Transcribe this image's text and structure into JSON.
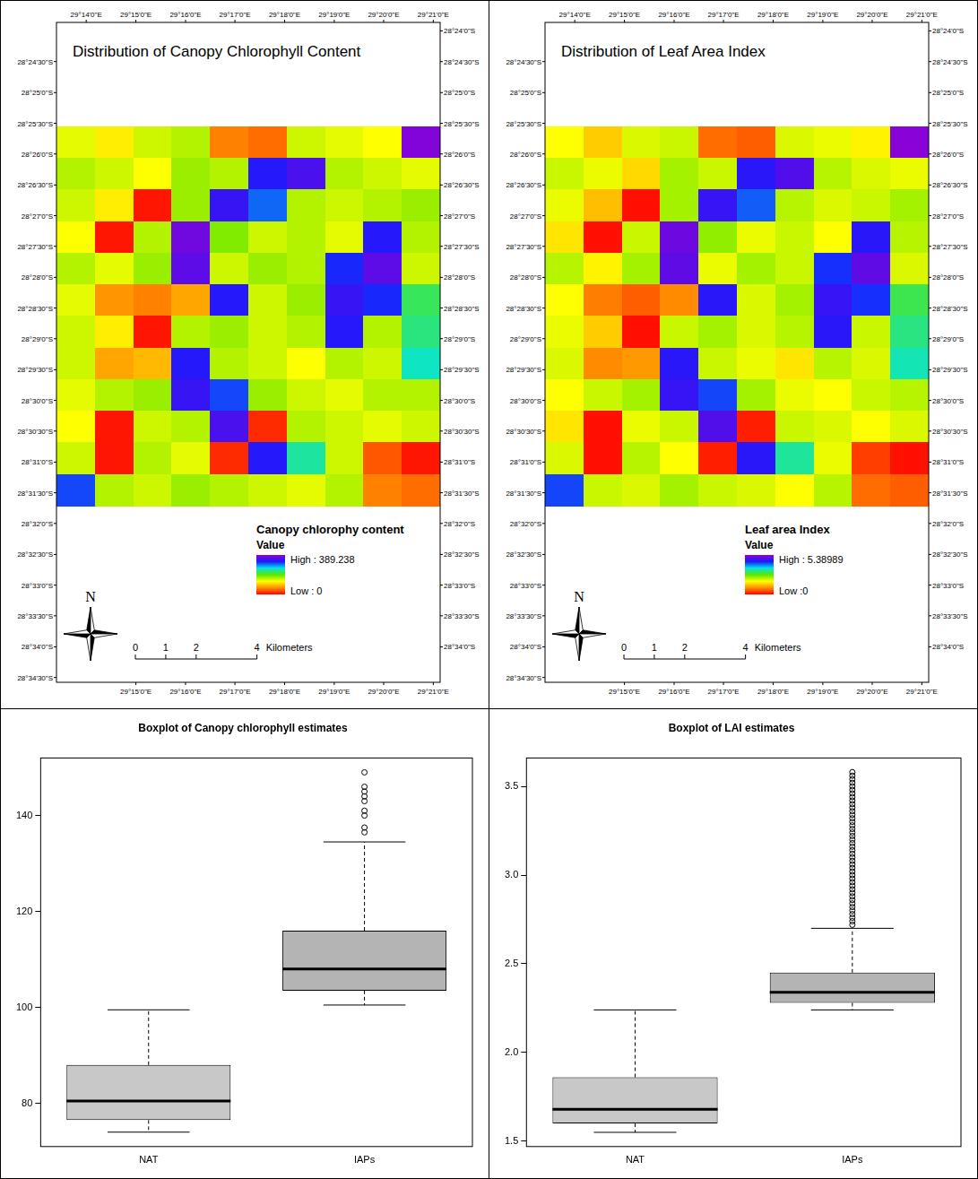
{
  "chart_data": [
    {
      "type": "map",
      "title": "Distribution of Canopy Chlorophyll Content",
      "legend_title": "Canopy chlorophy content",
      "legend_subtitle": "Value",
      "colorbar": {
        "range": [
          0,
          389.238
        ],
        "labels": [
          "Low : 0",
          "High : 389.238"
        ],
        "colors": [
          "#ff0000",
          "#ff8c00",
          "#ffff00",
          "#5ce600",
          "#00e5e5",
          "#1a1aff",
          "#9400d3"
        ]
      },
      "north": "N",
      "scale_bar": {
        "ticks": [
          0,
          1,
          2,
          4
        ],
        "unit": "Kilometers"
      },
      "xlim": [
        29.2233,
        29.3523
      ],
      "ylim": [
        -28.3977,
        -28.5763
      ],
      "xticks_top": [
        {
          "value": 29.2333,
          "label": "29°14'0\"E"
        },
        {
          "value": 29.25,
          "label": "29°15'0\"E"
        },
        {
          "value": 29.2667,
          "label": "29°16'0\"E"
        },
        {
          "value": 29.2833,
          "label": "29°17'0\"E"
        },
        {
          "value": 29.3,
          "label": "29°18'0\"E"
        },
        {
          "value": 29.3167,
          "label": "29°19'0\"E"
        },
        {
          "value": 29.3333,
          "label": "29°20'0\"E"
        },
        {
          "value": 29.35,
          "label": "29°21'0\"E"
        }
      ],
      "xticks_bottom": [
        {
          "value": 29.25,
          "label": "29°15'0\"E"
        },
        {
          "value": 29.2667,
          "label": "29°16'0\"E"
        },
        {
          "value": 29.2833,
          "label": "29°17'0\"E"
        },
        {
          "value": 29.3,
          "label": "29°18'0\"E"
        },
        {
          "value": 29.3167,
          "label": "29°19'0\"E"
        },
        {
          "value": 29.3333,
          "label": "29°20'0\"E"
        },
        {
          "value": 29.35,
          "label": "29°21'0\"E"
        }
      ],
      "yticks_left": [
        {
          "value": -28.4083,
          "label": "28°24'30\"S"
        },
        {
          "value": -28.4167,
          "label": "28°25'0\"S"
        },
        {
          "value": -28.425,
          "label": "28°25'30\"S"
        },
        {
          "value": -28.4333,
          "label": "28°26'0\"S"
        },
        {
          "value": -28.4417,
          "label": "28°26'30\"S"
        },
        {
          "value": -28.45,
          "label": "28°27'0\"S"
        },
        {
          "value": -28.4583,
          "label": "28°27'30\"S"
        },
        {
          "value": -28.4667,
          "label": "28°28'0\"S"
        },
        {
          "value": -28.475,
          "label": "28°28'30\"S"
        },
        {
          "value": -28.4833,
          "label": "28°29'0\"S"
        },
        {
          "value": -28.4917,
          "label": "28°29'30\"S"
        },
        {
          "value": -28.5,
          "label": "28°30'0\"S"
        },
        {
          "value": -28.5083,
          "label": "28°30'30\"S"
        },
        {
          "value": -28.5167,
          "label": "28°31'0\"S"
        },
        {
          "value": -28.525,
          "label": "28°31'30\"S"
        },
        {
          "value": -28.5333,
          "label": "28°32'0\"S"
        },
        {
          "value": -28.5417,
          "label": "28°32'30\"S"
        },
        {
          "value": -28.55,
          "label": "28°33'0\"S"
        },
        {
          "value": -28.5583,
          "label": "28°33'30\"S"
        },
        {
          "value": -28.5667,
          "label": "28°34'0\"S"
        },
        {
          "value": -28.575,
          "label": "28°34'30\"S"
        }
      ],
      "yticks_right": [
        {
          "value": -28.4,
          "label": "28°24'0\"S"
        },
        {
          "value": -28.4083,
          "label": "28°24'30\"S"
        },
        {
          "value": -28.4167,
          "label": "28°25'0\"S"
        },
        {
          "value": -28.425,
          "label": "28°25'30\"S"
        },
        {
          "value": -28.4333,
          "label": "28°26'0\"S"
        },
        {
          "value": -28.4417,
          "label": "28°26'30\"S"
        },
        {
          "value": -28.45,
          "label": "28°27'0\"S"
        },
        {
          "value": -28.4583,
          "label": "28°27'30\"S"
        },
        {
          "value": -28.4667,
          "label": "28°28'0\"S"
        },
        {
          "value": -28.475,
          "label": "28°28'30\"S"
        },
        {
          "value": -28.4833,
          "label": "28°29'0\"S"
        },
        {
          "value": -28.4917,
          "label": "28°29'30\"S"
        },
        {
          "value": -28.5,
          "label": "28°30'0\"S"
        },
        {
          "value": -28.5083,
          "label": "28°30'30\"S"
        },
        {
          "value": -28.5167,
          "label": "28°31'0\"S"
        },
        {
          "value": -28.525,
          "label": "28°31'30\"S"
        },
        {
          "value": -28.5333,
          "label": "28°32'0\"S"
        },
        {
          "value": -28.5417,
          "label": "28°32'30\"S"
        },
        {
          "value": -28.55,
          "label": "28°33'0\"S"
        },
        {
          "value": -28.5583,
          "label": "28°33'30\"S"
        },
        {
          "value": -28.5667,
          "label": "28°34'0\"S"
        }
      ],
      "cells_extent": {
        "lon": [
          29.2233,
          29.3523
        ],
        "lat": [
          -28.4258,
          -28.5285
        ]
      },
      "cells": [
        [
          140,
          120,
          150,
          160,
          60,
          50,
          150,
          140,
          130,
          380
        ],
        [
          160,
          150,
          130,
          170,
          160,
          330,
          350,
          160,
          150,
          140
        ],
        [
          150,
          120,
          10,
          170,
          340,
          300,
          160,
          150,
          160,
          170
        ],
        [
          130,
          10,
          160,
          370,
          180,
          150,
          160,
          140,
          330,
          160
        ],
        [
          160,
          140,
          170,
          360,
          150,
          170,
          160,
          320,
          360,
          150
        ],
        [
          140,
          70,
          60,
          80,
          330,
          150,
          170,
          340,
          320,
          220
        ],
        [
          150,
          120,
          10,
          160,
          170,
          150,
          160,
          330,
          160,
          230
        ],
        [
          150,
          80,
          90,
          330,
          160,
          150,
          130,
          160,
          150,
          250
        ],
        [
          140,
          160,
          170,
          340,
          310,
          170,
          150,
          140,
          160,
          160
        ],
        [
          130,
          10,
          150,
          160,
          350,
          20,
          160,
          150,
          140,
          150
        ],
        [
          150,
          10,
          160,
          140,
          20,
          330,
          240,
          150,
          40,
          10
        ],
        [
          310,
          160,
          150,
          170,
          160,
          150,
          140,
          160,
          60,
          50
        ]
      ]
    },
    {
      "type": "map",
      "title": "Distribution of Leaf Area Index",
      "legend_title": "Leaf area Index",
      "legend_subtitle": "Value",
      "colorbar": {
        "range": [
          0,
          5.38989
        ],
        "labels": [
          "Low :0",
          "High : 5.38989"
        ],
        "colors": [
          "#ff0000",
          "#ff8c00",
          "#ffff00",
          "#5ce600",
          "#00e5e5",
          "#1a1aff",
          "#9400d3"
        ]
      },
      "north": "N",
      "scale_bar": {
        "ticks": [
          0,
          1,
          2,
          4
        ],
        "unit": "Kilometers"
      },
      "xlim": [
        29.2233,
        29.3523
      ],
      "ylim": [
        -28.3977,
        -28.5763
      ],
      "xticks_top": [
        {
          "value": 29.2333,
          "label": "29°14'0\"E"
        },
        {
          "value": 29.25,
          "label": "29°15'0\"E"
        },
        {
          "value": 29.2667,
          "label": "29°16'0\"E"
        },
        {
          "value": 29.2833,
          "label": "29°17'0\"E"
        },
        {
          "value": 29.3,
          "label": "29°18'0\"E"
        },
        {
          "value": 29.3167,
          "label": "29°19'0\"E"
        },
        {
          "value": 29.3333,
          "label": "29°20'0\"E"
        },
        {
          "value": 29.35,
          "label": "29°21'0\"E"
        }
      ],
      "xticks_bottom": [
        {
          "value": 29.25,
          "label": "29°15'0\"E"
        },
        {
          "value": 29.2667,
          "label": "29°16'0\"E"
        },
        {
          "value": 29.2833,
          "label": "29°17'0\"E"
        },
        {
          "value": 29.3,
          "label": "29°18'0\"E"
        },
        {
          "value": 29.3167,
          "label": "29°19'0\"E"
        },
        {
          "value": 29.3333,
          "label": "29°20'0\"E"
        },
        {
          "value": 29.35,
          "label": "29°21'0\"E"
        }
      ],
      "yticks_left": [
        {
          "value": -28.4083,
          "label": "28°24'30\"S"
        },
        {
          "value": -28.4167,
          "label": "28°25'0\"S"
        },
        {
          "value": -28.425,
          "label": "28°25'30\"S"
        },
        {
          "value": -28.4333,
          "label": "28°26'0\"S"
        },
        {
          "value": -28.4417,
          "label": "28°26'30\"S"
        },
        {
          "value": -28.45,
          "label": "28°27'0\"S"
        },
        {
          "value": -28.4583,
          "label": "28°27'30\"S"
        },
        {
          "value": -28.4667,
          "label": "28°28'0\"S"
        },
        {
          "value": -28.475,
          "label": "28°28'30\"S"
        },
        {
          "value": -28.4833,
          "label": "28°29'0\"S"
        },
        {
          "value": -28.4917,
          "label": "28°29'30\"S"
        },
        {
          "value": -28.5,
          "label": "28°30'0\"S"
        },
        {
          "value": -28.5083,
          "label": "28°30'30\"S"
        },
        {
          "value": -28.5167,
          "label": "28°31'0\"S"
        },
        {
          "value": -28.525,
          "label": "28°31'30\"S"
        },
        {
          "value": -28.5333,
          "label": "28°32'0\"S"
        },
        {
          "value": -28.5417,
          "label": "28°32'30\"S"
        },
        {
          "value": -28.55,
          "label": "28°33'0\"S"
        },
        {
          "value": -28.5583,
          "label": "28°33'30\"S"
        },
        {
          "value": -28.5667,
          "label": "28°34'0\"S"
        },
        {
          "value": -28.575,
          "label": "28°34'30\"S"
        }
      ],
      "yticks_right": [
        {
          "value": -28.4,
          "label": "28°24'0\"S"
        },
        {
          "value": -28.4083,
          "label": "28°24'30\"S"
        },
        {
          "value": -28.4167,
          "label": "28°25'0\"S"
        },
        {
          "value": -28.425,
          "label": "28°25'30\"S"
        },
        {
          "value": -28.4333,
          "label": "28°26'0\"S"
        },
        {
          "value": -28.4417,
          "label": "28°26'30\"S"
        },
        {
          "value": -28.45,
          "label": "28°27'0\"S"
        },
        {
          "value": -28.4583,
          "label": "28°27'30\"S"
        },
        {
          "value": -28.4667,
          "label": "28°28'0\"S"
        },
        {
          "value": -28.475,
          "label": "28°28'30\"S"
        },
        {
          "value": -28.4833,
          "label": "28°29'0\"S"
        },
        {
          "value": -28.4917,
          "label": "28°29'30\"S"
        },
        {
          "value": -28.5,
          "label": "28°30'0\"S"
        },
        {
          "value": -28.5083,
          "label": "28°30'30\"S"
        },
        {
          "value": -28.5167,
          "label": "28°31'0\"S"
        },
        {
          "value": -28.525,
          "label": "28°31'30\"S"
        },
        {
          "value": -28.5333,
          "label": "28°32'0\"S"
        },
        {
          "value": -28.5417,
          "label": "28°32'30\"S"
        },
        {
          "value": -28.55,
          "label": "28°33'0\"S"
        },
        {
          "value": -28.5583,
          "label": "28°33'30\"S"
        },
        {
          "value": -28.5667,
          "label": "28°34'0\"S"
        }
      ],
      "cells_extent": {
        "lon": [
          29.2233,
          29.3523
        ],
        "lat": [
          -28.4258,
          -28.5285
        ]
      },
      "cells": [
        [
          1.8,
          1.4,
          2.0,
          2.1,
          0.7,
          0.6,
          2.0,
          1.9,
          1.7,
          5.3
        ],
        [
          2.1,
          1.9,
          1.5,
          2.3,
          2.1,
          4.6,
          4.9,
          2.2,
          2.0,
          1.9
        ],
        [
          1.9,
          1.3,
          0.1,
          2.3,
          4.7,
          4.2,
          2.2,
          2.0,
          2.1,
          2.3
        ],
        [
          1.6,
          0.1,
          2.1,
          5.1,
          2.4,
          1.9,
          2.1,
          1.8,
          4.6,
          2.2
        ],
        [
          2.2,
          1.7,
          2.3,
          5.0,
          1.9,
          2.3,
          2.1,
          4.4,
          5.0,
          2.0
        ],
        [
          1.8,
          0.8,
          0.6,
          0.9,
          4.6,
          2.0,
          2.3,
          4.7,
          4.4,
          3.0
        ],
        [
          1.9,
          1.4,
          0.1,
          2.1,
          2.3,
          2.0,
          2.2,
          4.6,
          2.1,
          3.2
        ],
        [
          2.0,
          0.9,
          1.0,
          4.6,
          2.1,
          1.9,
          1.6,
          2.2,
          2.0,
          3.4
        ],
        [
          1.8,
          2.1,
          2.3,
          4.7,
          4.3,
          2.3,
          1.9,
          1.8,
          2.1,
          2.2
        ],
        [
          1.6,
          0.1,
          1.9,
          2.1,
          4.9,
          0.2,
          2.1,
          2.0,
          1.8,
          2.0
        ],
        [
          2.0,
          0.1,
          2.2,
          1.8,
          0.2,
          4.6,
          3.3,
          1.9,
          0.4,
          0.1
        ],
        [
          4.3,
          2.1,
          2.0,
          2.3,
          2.1,
          2.0,
          1.8,
          2.2,
          0.7,
          0.6
        ]
      ]
    },
    {
      "type": "box",
      "title": "Boxplot of Canopy chlorophyll estimates",
      "categories": [
        "NAT",
        "IAPs"
      ],
      "colors": [
        "#c8c8c8",
        "#b4b4b4"
      ],
      "boxes": [
        {
          "whisker_low": 74,
          "q1": 76.5,
          "median": 80.5,
          "q3": 88,
          "whisker_high": 99.5,
          "outliers": []
        },
        {
          "whisker_low": 100.5,
          "q1": 103.5,
          "median": 108,
          "q3": 116,
          "whisker_high": 134.5,
          "outliers": [
            136.5,
            137.5,
            140,
            141,
            143,
            144,
            145,
            146,
            149
          ]
        }
      ],
      "ylim": [
        71,
        152
      ],
      "yticks": [
        80,
        100,
        120,
        140
      ],
      "grid": false
    },
    {
      "type": "box",
      "title": "Boxplot of LAI estimates",
      "categories": [
        "NAT",
        "IAPs"
      ],
      "colors": [
        "#c8c8c8",
        "#b4b4b4"
      ],
      "boxes": [
        {
          "whisker_low": 1.55,
          "q1": 1.6,
          "median": 1.68,
          "q3": 1.86,
          "whisker_high": 2.24,
          "outliers": []
        },
        {
          "whisker_low": 2.24,
          "q1": 2.28,
          "median": 2.34,
          "q3": 2.45,
          "whisker_high": 2.7,
          "outliers": [
            2.72,
            2.74,
            2.76,
            2.78,
            2.8,
            2.82,
            2.84,
            2.86,
            2.88,
            2.9,
            2.92,
            2.94,
            2.96,
            2.98,
            3.0,
            3.02,
            3.04,
            3.06,
            3.08,
            3.1,
            3.12,
            3.14,
            3.16,
            3.18,
            3.2,
            3.22,
            3.24,
            3.26,
            3.28,
            3.3,
            3.32,
            3.34,
            3.36,
            3.38,
            3.4,
            3.42,
            3.44,
            3.46,
            3.48,
            3.5,
            3.52,
            3.54,
            3.56,
            3.58
          ]
        }
      ],
      "ylim": [
        1.47,
        3.66
      ],
      "yticks": [
        1.5,
        {
          "value": 2,
          "label": "2.0"
        },
        2.5,
        {
          "value": 3,
          "label": "3.0"
        },
        3.5
      ],
      "grid": false
    }
  ]
}
